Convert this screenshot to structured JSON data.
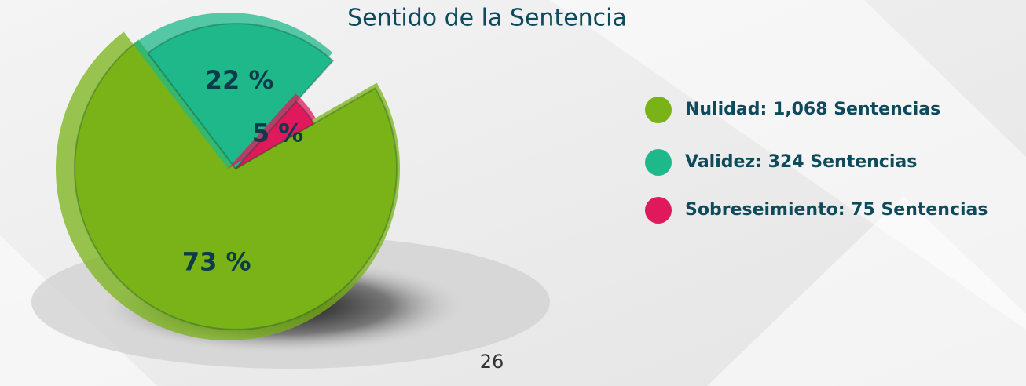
{
  "chart_data": {
    "type": "pie",
    "title": "Sentido de la Sentencia",
    "categories": [
      "Nulidad: 1,068 Sentencias",
      "Validez: 324 Sentencias",
      "Sobreseimiento: 75 Sentencias"
    ],
    "values": [
      73,
      22,
      5
    ],
    "value_labels": [
      "73 %",
      "22 %",
      "5 %"
    ],
    "colors": [
      "#7ab317",
      "#1fb88a",
      "#e0185c"
    ]
  },
  "page_number": "26"
}
